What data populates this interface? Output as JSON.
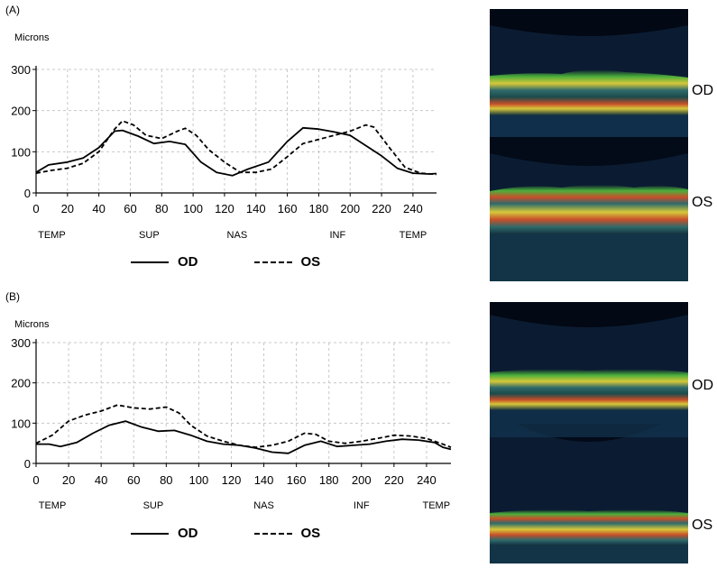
{
  "chart_data": [
    {
      "type": "line",
      "panel_label": "(A)",
      "ylabel": "Microns",
      "xlabel": "",
      "xlim": [
        0,
        255
      ],
      "ylim": [
        0,
        300
      ],
      "xticks": [
        0,
        20,
        40,
        60,
        80,
        100,
        120,
        140,
        160,
        180,
        200,
        220,
        240
      ],
      "yticks": [
        0,
        100,
        200,
        300
      ],
      "region_labels": [
        {
          "label": "TEMP",
          "x": 10
        },
        {
          "label": "SUP",
          "x": 72
        },
        {
          "label": "NAS",
          "x": 128
        },
        {
          "label": "INF",
          "x": 192
        },
        {
          "label": "TEMP",
          "x": 240
        }
      ],
      "legend_position": "bottom",
      "grid": true,
      "series": [
        {
          "name": "OD",
          "style": "solid",
          "points": [
            [
              0,
              50
            ],
            [
              8,
              68
            ],
            [
              20,
              75
            ],
            [
              30,
              85
            ],
            [
              40,
              110
            ],
            [
              50,
              150
            ],
            [
              55,
              152
            ],
            [
              65,
              138
            ],
            [
              75,
              120
            ],
            [
              85,
              125
            ],
            [
              95,
              118
            ],
            [
              105,
              75
            ],
            [
              115,
              50
            ],
            [
              125,
              42
            ],
            [
              135,
              58
            ],
            [
              148,
              75
            ],
            [
              160,
              125
            ],
            [
              170,
              158
            ],
            [
              180,
              155
            ],
            [
              190,
              148
            ],
            [
              200,
              140
            ],
            [
              210,
              115
            ],
            [
              220,
              90
            ],
            [
              230,
              60
            ],
            [
              240,
              48
            ],
            [
              250,
              46
            ],
            [
              255,
              47
            ]
          ]
        },
        {
          "name": "OS",
          "style": "dashed",
          "points": [
            [
              0,
              48
            ],
            [
              10,
              55
            ],
            [
              20,
              60
            ],
            [
              30,
              72
            ],
            [
              40,
              100
            ],
            [
              50,
              155
            ],
            [
              55,
              175
            ],
            [
              62,
              165
            ],
            [
              70,
              140
            ],
            [
              80,
              132
            ],
            [
              90,
              150
            ],
            [
              95,
              157
            ],
            [
              102,
              140
            ],
            [
              110,
              105
            ],
            [
              120,
              75
            ],
            [
              130,
              50
            ],
            [
              140,
              50
            ],
            [
              150,
              58
            ],
            [
              160,
              88
            ],
            [
              170,
              120
            ],
            [
              180,
              130
            ],
            [
              190,
              140
            ],
            [
              200,
              150
            ],
            [
              210,
              165
            ],
            [
              215,
              160
            ],
            [
              225,
              110
            ],
            [
              235,
              62
            ],
            [
              245,
              48
            ],
            [
              255,
              45
            ]
          ]
        }
      ]
    },
    {
      "type": "line",
      "panel_label": "(B)",
      "ylabel": "Microns",
      "xlabel": "",
      "xlim": [
        0,
        255
      ],
      "ylim": [
        0,
        300
      ],
      "xticks": [
        0,
        20,
        40,
        60,
        80,
        100,
        120,
        140,
        160,
        180,
        200,
        220,
        240
      ],
      "yticks": [
        0,
        100,
        200,
        300
      ],
      "region_labels": [
        {
          "label": "TEMP",
          "x": 10
        },
        {
          "label": "SUP",
          "x": 72
        },
        {
          "label": "NAS",
          "x": 140
        },
        {
          "label": "INF",
          "x": 200
        },
        {
          "label": "TEMP",
          "x": 246
        }
      ],
      "legend_position": "bottom",
      "grid": true,
      "series": [
        {
          "name": "OD",
          "style": "solid",
          "points": [
            [
              0,
              48
            ],
            [
              8,
              48
            ],
            [
              15,
              42
            ],
            [
              25,
              52
            ],
            [
              35,
              75
            ],
            [
              45,
              95
            ],
            [
              55,
              105
            ],
            [
              65,
              90
            ],
            [
              75,
              80
            ],
            [
              85,
              82
            ],
            [
              95,
              70
            ],
            [
              105,
              55
            ],
            [
              115,
              48
            ],
            [
              125,
              45
            ],
            [
              135,
              38
            ],
            [
              145,
              28
            ],
            [
              155,
              25
            ],
            [
              165,
              45
            ],
            [
              175,
              55
            ],
            [
              185,
              42
            ],
            [
              195,
              45
            ],
            [
              205,
              48
            ],
            [
              215,
              55
            ],
            [
              225,
              60
            ],
            [
              235,
              58
            ],
            [
              245,
              52
            ],
            [
              250,
              40
            ],
            [
              255,
              35
            ]
          ]
        },
        {
          "name": "OS",
          "style": "dashed",
          "points": [
            [
              0,
              50
            ],
            [
              10,
              70
            ],
            [
              20,
              105
            ],
            [
              30,
              120
            ],
            [
              40,
              130
            ],
            [
              50,
              145
            ],
            [
              60,
              138
            ],
            [
              70,
              135
            ],
            [
              80,
              140
            ],
            [
              88,
              125
            ],
            [
              95,
              95
            ],
            [
              105,
              68
            ],
            [
              115,
              55
            ],
            [
              125,
              45
            ],
            [
              135,
              40
            ],
            [
              145,
              45
            ],
            [
              155,
              55
            ],
            [
              165,
              75
            ],
            [
              172,
              72
            ],
            [
              180,
              55
            ],
            [
              190,
              50
            ],
            [
              200,
              55
            ],
            [
              210,
              62
            ],
            [
              220,
              70
            ],
            [
              230,
              68
            ],
            [
              240,
              62
            ],
            [
              250,
              48
            ],
            [
              255,
              40
            ]
          ]
        }
      ]
    }
  ],
  "oct_panels": [
    {
      "eye_labels": [
        "OD",
        "OS"
      ]
    },
    {
      "eye_labels": [
        "OD",
        "OS"
      ]
    }
  ],
  "colors": {
    "grid": "#c8c8c8",
    "axis": "#000000",
    "oct_background": "#0a1a30",
    "oct_band_green": "#4caf3c",
    "oct_band_yellow": "#d6c83a",
    "oct_band_red": "#c8502a",
    "oct_band_teal": "#2e6a6a"
  }
}
